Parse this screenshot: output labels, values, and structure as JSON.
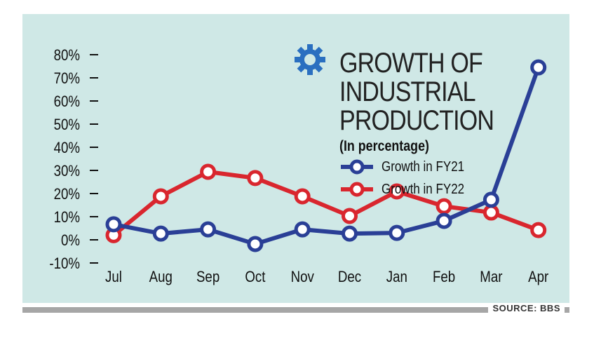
{
  "chart_data": {
    "type": "line",
    "title": "GROWTH OF INDUSTRIAL PRODUCTION",
    "subtitle": "(In percentage)",
    "categories": [
      "Jul",
      "Aug",
      "Sep",
      "Oct",
      "Nov",
      "Dec",
      "Jan",
      "Feb",
      "Mar",
      "Apr"
    ],
    "yticks": [
      "80%",
      "70%",
      "60%",
      "50%",
      "40%",
      "30%",
      "20%",
      "10%",
      "0%",
      "-10%"
    ],
    "ylim": [
      -10,
      80
    ],
    "grid": false,
    "legend_placement": "top-right",
    "series": [
      {
        "name": "Growth in FY21",
        "color": "#2a3f96",
        "values": [
          6.7,
          2.7,
          4.5,
          -1.8,
          4.5,
          2.7,
          3.0,
          8.2,
          17.3,
          74.5
        ]
      },
      {
        "name": "Growth in FY22",
        "color": "#d9262e",
        "values": [
          2.0,
          18.8,
          29.4,
          26.7,
          18.8,
          10.3,
          20.9,
          14.5,
          11.8,
          4.2
        ]
      }
    ]
  },
  "title_lines": [
    "GROWTH OF",
    "INDUSTRIAL",
    "PRODUCTION"
  ],
  "source": "SOURCE: BBS",
  "colors": {
    "background": "#cfe8e6",
    "gear": "#2a6fc0"
  }
}
